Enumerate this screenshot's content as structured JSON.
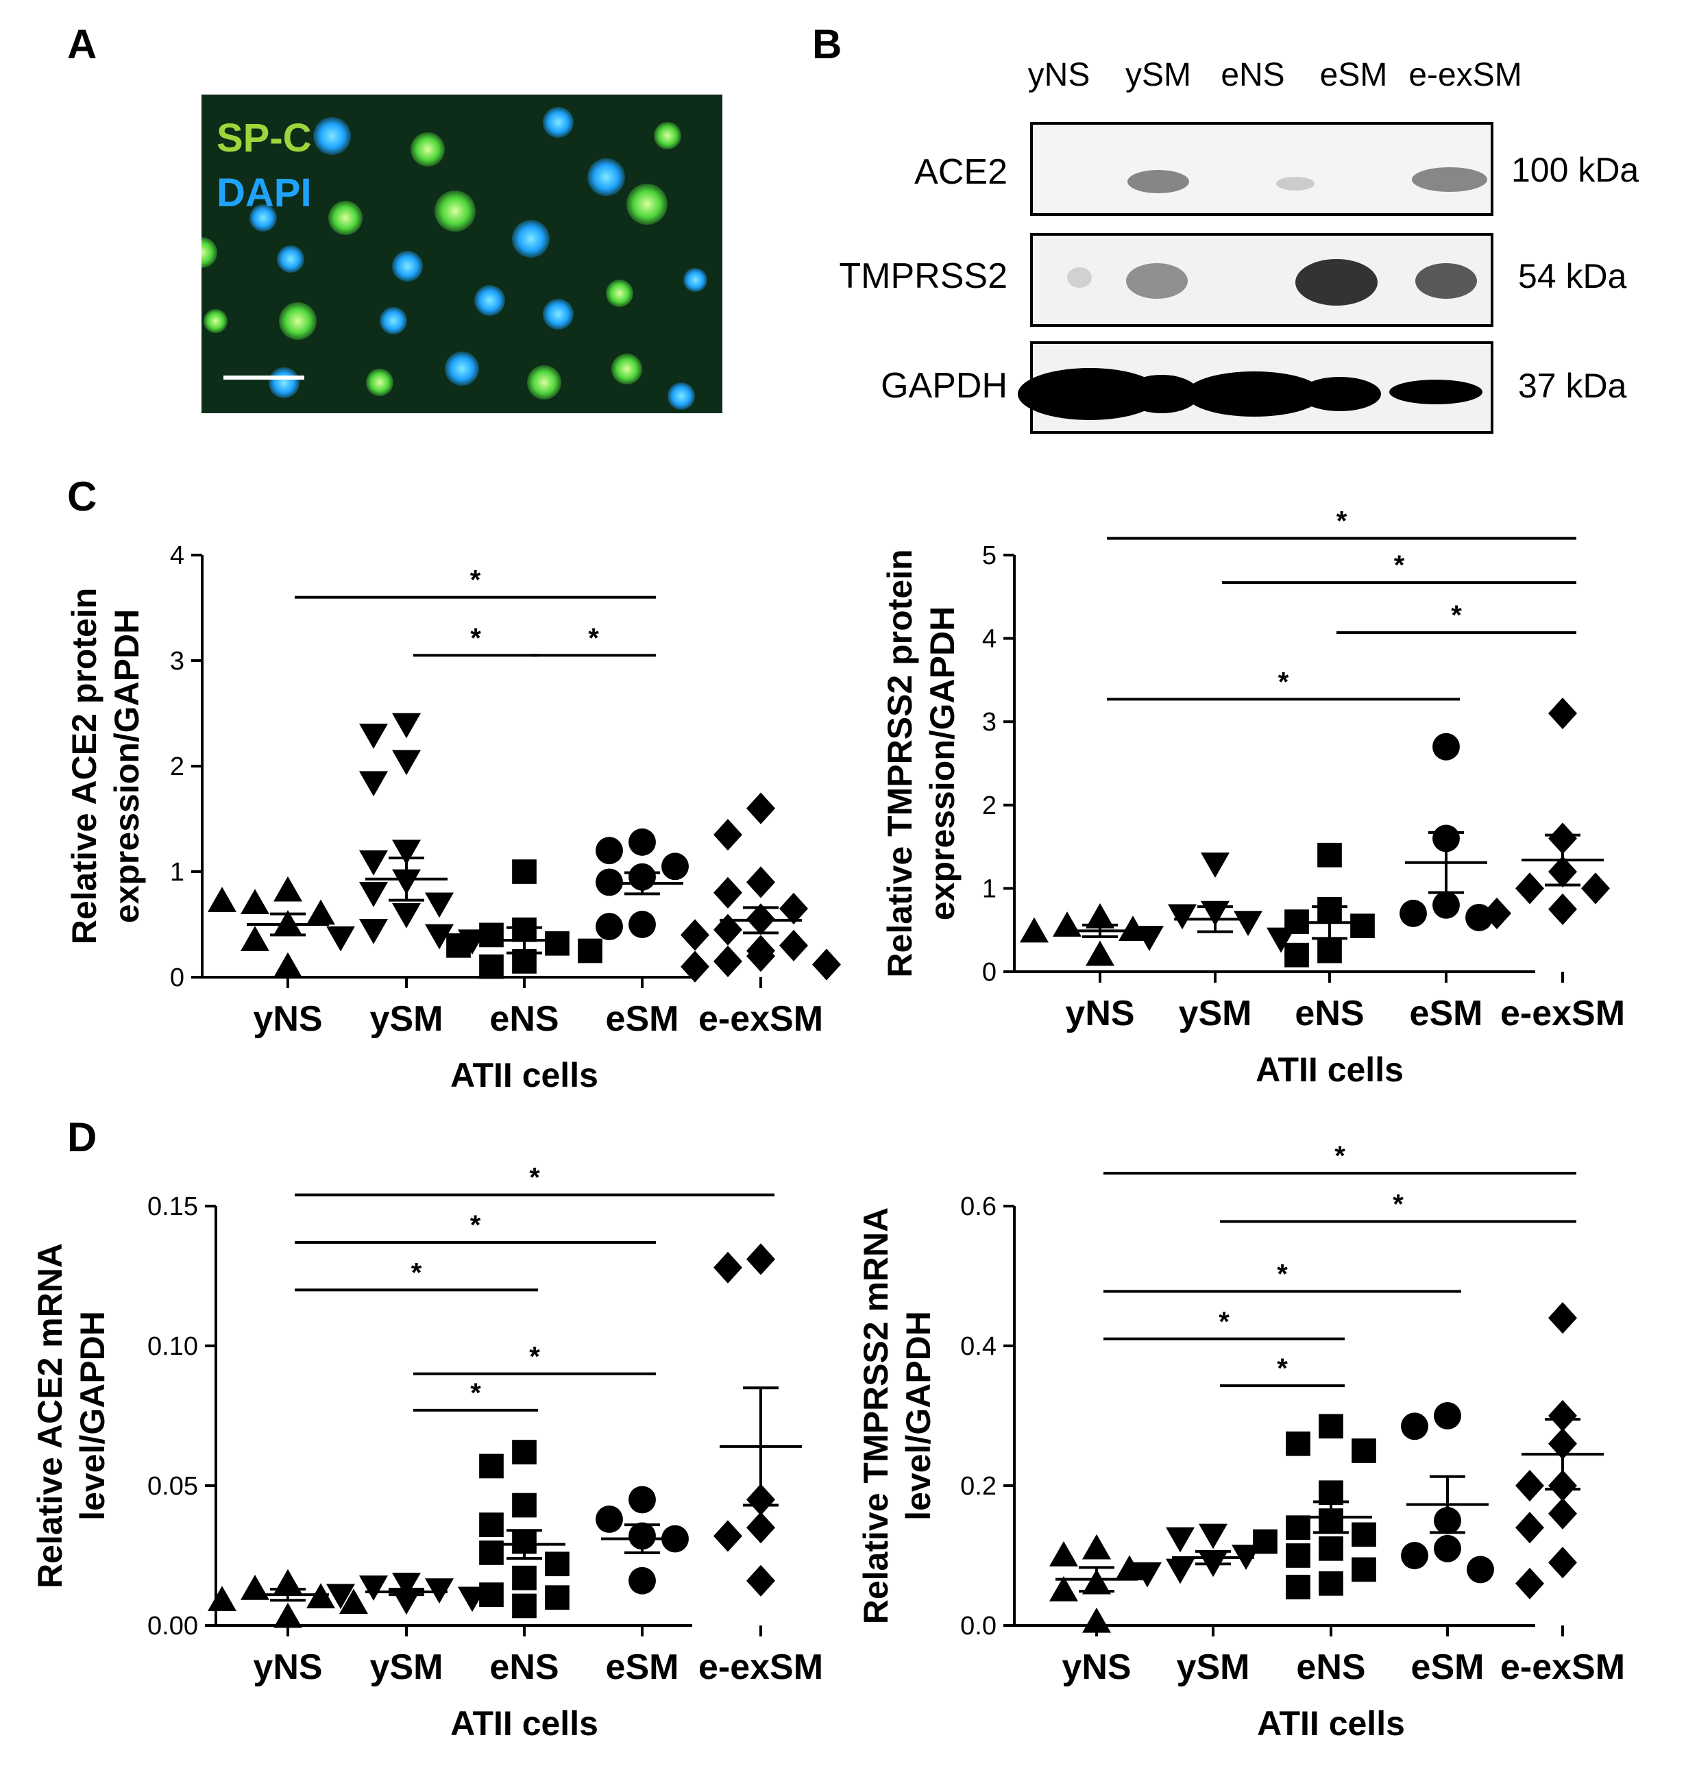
{
  "panels": {
    "A": "A",
    "B": "B",
    "C": "C",
    "D": "D"
  },
  "micrograph": {
    "labels": [
      "SP-C",
      "DAPI"
    ],
    "colors": {
      "spc": "#9dd63c",
      "dapi": "#1fa3ff"
    }
  },
  "blot": {
    "lanes": [
      "yNS",
      "ySM",
      "eNS",
      "eSM",
      "e-exSM"
    ],
    "proteins": [
      "ACE2",
      "TMPRSS2",
      "GAPDH"
    ],
    "sizes": [
      "100 kDa",
      "54 kDa",
      "37 kDa"
    ]
  },
  "chart_data": [
    {
      "id": "c1",
      "type": "scatter",
      "categories": [
        "yNS",
        "ySM",
        "eNS",
        "eSM",
        "e-exSM"
      ],
      "ylabel": [
        "Relative ACE2 protein",
        "expression/GAPDH"
      ],
      "xlabel": "ATII cells",
      "ylim": [
        0,
        4
      ],
      "yticks": [
        "0",
        "1",
        "2",
        "3",
        "4"
      ],
      "markers": [
        "triangle",
        "triangle-down",
        "square",
        "circle",
        "diamond"
      ],
      "points": [
        [
          0.82,
          0.7,
          0.6,
          0.72,
          0.5,
          0.35,
          0.1
        ],
        [
          2.4,
          2.3,
          2.05,
          1.85,
          1.2,
          1.1,
          0.92,
          0.8,
          0.7,
          0.6,
          0.45,
          0.4,
          0.38,
          0.35
        ],
        [
          1.0,
          0.45,
          0.4,
          0.32,
          0.3,
          0.25,
          0.15,
          0.1
        ],
        [
          1.28,
          1.2,
          1.05,
          0.95,
          0.9,
          0.5,
          0.48
        ],
        [
          1.6,
          1.35,
          0.9,
          0.8,
          0.65,
          0.55,
          0.45,
          0.3,
          0.2,
          0.15,
          0.1,
          0.12,
          0.25,
          0.4
        ]
      ],
      "mean": [
        0.5,
        0.93,
        0.35,
        0.89,
        0.54
      ],
      "sem": [
        0.1,
        0.2,
        0.12,
        0.1,
        0.12
      ],
      "sig": [
        {
          "from": 0,
          "to": 3,
          "label": "*",
          "y": 3.6
        },
        {
          "from": 1,
          "to": 2,
          "label": "*",
          "y": 3.05
        },
        {
          "from": 2,
          "to": 3,
          "label": "*",
          "y": 3.05
        }
      ]
    },
    {
      "id": "c2",
      "type": "scatter",
      "categories": [
        "yNS",
        "ySM",
        "eNS",
        "eSM",
        "e-exSM"
      ],
      "ylabel": [
        "Relative TMPRSS2 protein",
        "expression/GAPDH"
      ],
      "xlabel": "ATII cells",
      "ylim": [
        0,
        5
      ],
      "yticks": [
        "0",
        "1",
        "2",
        "3",
        "4",
        "5"
      ],
      "markers": [
        "triangle",
        "triangle-down",
        "square",
        "circle",
        "diamond"
      ],
      "points": [
        [
          0.65,
          0.55,
          0.5,
          0.48,
          0.2
        ],
        [
          1.3,
          0.72,
          0.68,
          0.6,
          0.42,
          0.4
        ],
        [
          1.4,
          0.75,
          0.6,
          0.55,
          0.25,
          0.2
        ],
        [
          2.7,
          1.6,
          0.8,
          0.7,
          0.65
        ],
        [
          3.1,
          1.6,
          1.2,
          1.0,
          1.0,
          0.75,
          0.7
        ]
      ],
      "mean": [
        0.49,
        0.63,
        0.59,
        1.31,
        1.34
      ],
      "sem": [
        0.07,
        0.15,
        0.19,
        0.36,
        0.3
      ],
      "sig": [
        {
          "from": 0,
          "to": 4,
          "label": "*",
          "y": 5.2
        },
        {
          "from": 1,
          "to": 4,
          "label": "*",
          "y": 4.67
        },
        {
          "from": 2,
          "to": 4,
          "label": "*",
          "y": 4.07
        },
        {
          "from": 0,
          "to": 3,
          "label": "*",
          "y": 3.27
        }
      ]
    },
    {
      "id": "c3",
      "type": "scatter",
      "categories": [
        "yNS",
        "ySM",
        "eNS",
        "eSM",
        "e-exSM"
      ],
      "ylabel": [
        "Relative ACE2 mRNA",
        "level/GAPDH"
      ],
      "xlabel": "ATII cells",
      "ylim": [
        0,
        0.15
      ],
      "yticks": [
        "0.00",
        "0.05",
        "0.10",
        "0.15"
      ],
      "markers": [
        "triangle",
        "triangle-down",
        "square",
        "circle",
        "diamond"
      ],
      "points": [
        [
          0.015,
          0.013,
          0.01,
          0.009,
          0.008,
          0.003
        ],
        [
          0.015,
          0.014,
          0.013,
          0.011,
          0.01,
          0.009
        ],
        [
          0.062,
          0.057,
          0.043,
          0.036,
          0.03,
          0.026,
          0.022,
          0.017,
          0.011,
          0.01,
          0.007
        ],
        [
          0.045,
          0.038,
          0.032,
          0.031,
          0.016
        ],
        [
          0.131,
          0.128,
          0.045,
          0.035,
          0.032,
          0.016
        ]
      ],
      "mean": [
        0.011,
        0.012,
        0.029,
        0.031,
        0.064
      ],
      "sem": [
        0.002,
        0.001,
        0.005,
        0.005,
        0.021
      ],
      "sig": [
        {
          "from": 0,
          "to": 4,
          "label": "*",
          "y": 0.154
        },
        {
          "from": 0,
          "to": 3,
          "label": "*",
          "y": 0.137
        },
        {
          "from": 0,
          "to": 2,
          "label": "*",
          "y": 0.12
        },
        {
          "from": 1,
          "to": 3,
          "label": "*",
          "y": 0.09
        },
        {
          "from": 1,
          "to": 2,
          "label": "*",
          "y": 0.077
        }
      ]
    },
    {
      "id": "c4",
      "type": "scatter",
      "categories": [
        "yNS",
        "ySM",
        "eNS",
        "eSM",
        "e-exSM"
      ],
      "ylabel": [
        "Relative TMPRSS2 mRNA",
        "level/GAPDH"
      ],
      "xlabel": "ATII cells",
      "ylim": [
        0,
        0.6
      ],
      "yticks": [
        "0.0",
        "0.2",
        "0.4",
        "0.6"
      ],
      "markers": [
        "triangle",
        "triangle-down",
        "square",
        "circle",
        "diamond"
      ],
      "points": [
        [
          0.11,
          0.1,
          0.08,
          0.06,
          0.05,
          0.005
        ],
        [
          0.13,
          0.125,
          0.1,
          0.09,
          0.08,
          0.075
        ],
        [
          0.285,
          0.26,
          0.25,
          0.19,
          0.15,
          0.14,
          0.13,
          0.12,
          0.11,
          0.1,
          0.08,
          0.06,
          0.055
        ],
        [
          0.3,
          0.285,
          0.15,
          0.11,
          0.1,
          0.08
        ],
        [
          0.44,
          0.3,
          0.26,
          0.2,
          0.2,
          0.16,
          0.14,
          0.09,
          0.06
        ]
      ],
      "mean": [
        0.066,
        0.097,
        0.155,
        0.173,
        0.245
      ],
      "sem": [
        0.017,
        0.009,
        0.022,
        0.04,
        0.05
      ],
      "sig": [
        {
          "from": 0,
          "to": 4,
          "label": "*",
          "y": 0.647
        },
        {
          "from": 1,
          "to": 4,
          "label": "*",
          "y": 0.578
        },
        {
          "from": 0,
          "to": 3,
          "label": "*",
          "y": 0.478
        },
        {
          "from": 0,
          "to": 2,
          "label": "*",
          "y": 0.41
        },
        {
          "from": 1,
          "to": 2,
          "label": "*",
          "y": 0.343
        }
      ]
    }
  ]
}
